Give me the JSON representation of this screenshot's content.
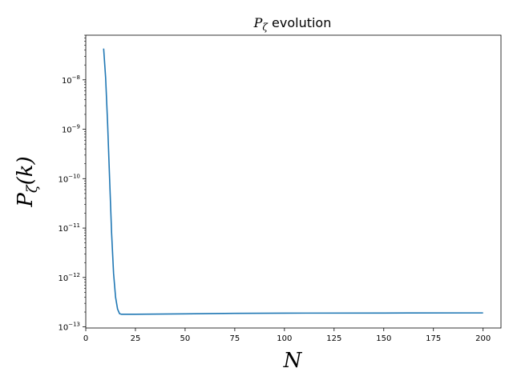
{
  "chart_data": {
    "type": "line",
    "title": {
      "symbol": "P",
      "subscript": "ζ",
      "text": "evolution"
    },
    "xlabel": "N",
    "ylabel": {
      "symbol": "P",
      "subscript": "ζ",
      "arg": "(k)"
    },
    "xlim": [
      0,
      209
    ],
    "ylim": [
      9.5e-14,
      8e-08
    ],
    "yscale": "log",
    "grid": false,
    "xticks": [
      0,
      25,
      50,
      75,
      100,
      125,
      150,
      175,
      200
    ],
    "yticks": [
      {
        "value": 1e-13,
        "base": "10",
        "exp": "−13"
      },
      {
        "value": 1e-12,
        "base": "10",
        "exp": "−12"
      },
      {
        "value": 1e-11,
        "base": "10",
        "exp": "−11"
      },
      {
        "value": 1e-10,
        "base": "10",
        "exp": "−10"
      },
      {
        "value": 1e-09,
        "base": "10",
        "exp": "−9"
      },
      {
        "value": 1e-08,
        "base": "10",
        "exp": "−8"
      }
    ],
    "series": [
      {
        "color": "#1f77b4",
        "x": [
          9,
          10,
          11,
          12,
          13,
          14,
          15,
          16,
          17,
          18,
          20,
          25,
          50,
          75,
          100,
          150,
          200
        ],
        "y": [
          4.3e-08,
          1.1e-08,
          1.3e-09,
          1e-10,
          8e-12,
          1.2e-12,
          4e-13,
          2.3e-13,
          1.85e-13,
          1.8e-13,
          1.8e-13,
          1.8e-13,
          1.84e-13,
          1.88e-13,
          1.9e-13,
          1.91e-13,
          1.92e-13
        ]
      }
    ]
  }
}
